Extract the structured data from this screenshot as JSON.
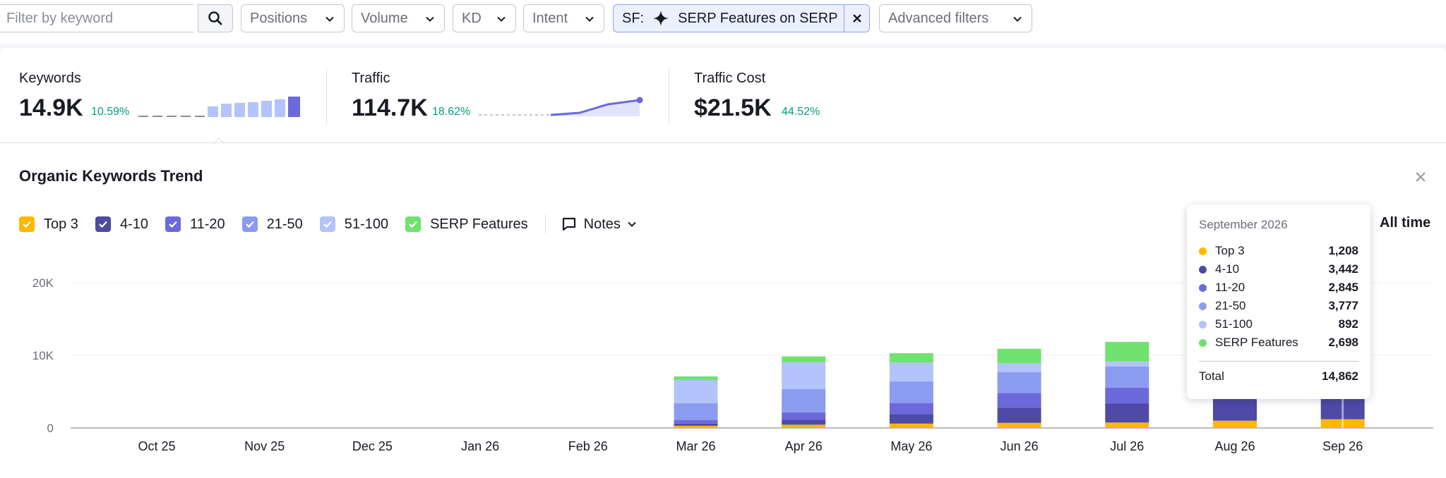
{
  "filters": {
    "search_placeholder": "Filter by keyword",
    "positions": "Positions",
    "volume": "Volume",
    "kd": "KD",
    "intent": "Intent",
    "sf_prefix": "SF:",
    "sf_value": "SERP Features on SERP",
    "advanced": "Advanced filters"
  },
  "summary": {
    "keywords": {
      "label": "Keywords",
      "value": "14.9K",
      "delta": "10.59%"
    },
    "traffic": {
      "label": "Traffic",
      "value": "114.7K",
      "delta": "18.62%"
    },
    "traffic_cost": {
      "label": "Traffic Cost",
      "value": "$21.5K",
      "delta": "44.52%"
    }
  },
  "trend": {
    "title": "Organic Keywords Trend",
    "legend": [
      {
        "label": "Top 3",
        "color": "#ffb700"
      },
      {
        "label": "4-10",
        "color": "#4e4aa6"
      },
      {
        "label": "11-20",
        "color": "#6c69db"
      },
      {
        "label": "21-50",
        "color": "#8b9bf0"
      },
      {
        "label": "51-100",
        "color": "#b3c3fb"
      },
      {
        "label": "SERP Features",
        "color": "#6fe270"
      }
    ],
    "notes_label": "Notes",
    "range_label": "All time"
  },
  "chart_data": {
    "type": "bar",
    "stacked": true,
    "categories": [
      "Oct 25",
      "Nov 25",
      "Dec 25",
      "Jan 26",
      "Feb 26",
      "Mar 26",
      "Apr 26",
      "May 26",
      "Jun 26",
      "Jul 26",
      "Aug 26",
      "Sep 26"
    ],
    "y_ticks": [
      "0",
      "10K",
      "20K"
    ],
    "ylim": [
      0,
      20000
    ],
    "series": [
      {
        "name": "Top 3",
        "values": [
          0,
          0,
          0,
          0,
          0,
          300,
          450,
          600,
          700,
          750,
          1000,
          1208
        ]
      },
      {
        "name": "4-10",
        "values": [
          0,
          0,
          0,
          0,
          0,
          300,
          700,
          1300,
          2100,
          2600,
          3000,
          3442
        ]
      },
      {
        "name": "11-20",
        "values": [
          0,
          0,
          0,
          0,
          0,
          500,
          1000,
          1500,
          2000,
          2200,
          2600,
          2845
        ]
      },
      {
        "name": "21-50",
        "values": [
          0,
          0,
          0,
          0,
          0,
          2300,
          3200,
          3000,
          2900,
          2900,
          3400,
          3777
        ]
      },
      {
        "name": "51-100",
        "values": [
          0,
          0,
          0,
          0,
          0,
          3200,
          3700,
          2600,
          1200,
          700,
          800,
          892
        ]
      },
      {
        "name": "SERP Features",
        "values": [
          0,
          0,
          0,
          0,
          0,
          500,
          800,
          1300,
          2000,
          2700,
          2600,
          2698
        ]
      }
    ]
  },
  "tooltip": {
    "title": "September 2026",
    "rows": [
      {
        "label": "Top 3",
        "value": "1,208",
        "color": "#ffb700"
      },
      {
        "label": "4-10",
        "value": "3,442",
        "color": "#4e4aa6"
      },
      {
        "label": "11-20",
        "value": "2,845",
        "color": "#6c69db"
      },
      {
        "label": "21-50",
        "value": "3,777",
        "color": "#8b9bf0"
      },
      {
        "label": "51-100",
        "value": "892",
        "color": "#b3c3fb"
      },
      {
        "label": "SERP Features",
        "value": "2,698",
        "color": "#6fe270"
      }
    ],
    "total_label": "Total",
    "total_value": "14,862"
  }
}
